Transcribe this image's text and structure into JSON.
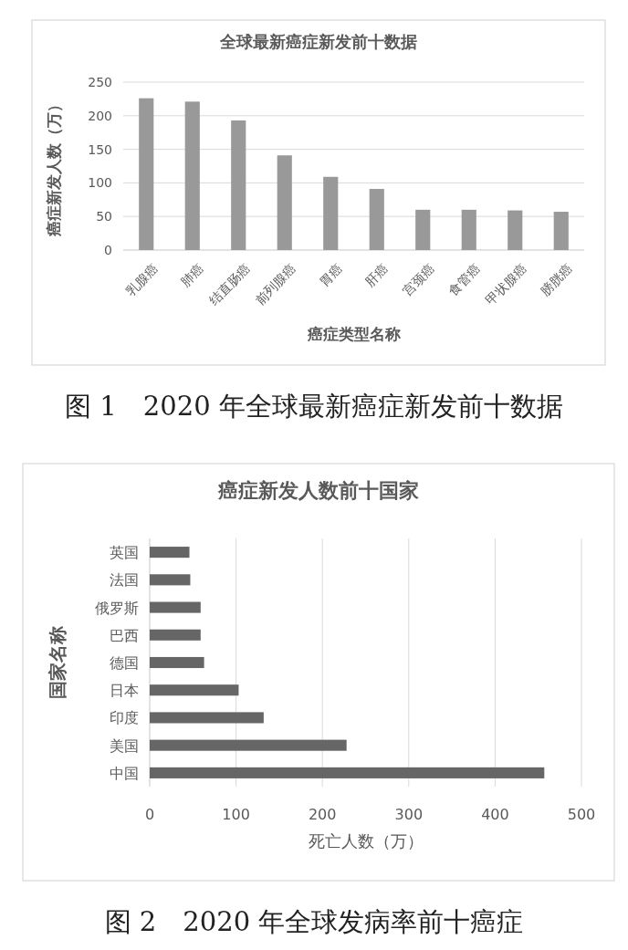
{
  "chart_data": [
    {
      "type": "bar",
      "title": "全球最新癌症新发前十数据",
      "xlabel": "癌症类型名称",
      "ylabel": "癌症新发人数（万）",
      "categories": [
        "乳腺癌",
        "肺癌",
        "结直肠癌",
        "前列腺癌",
        "胃癌",
        "肝癌",
        "宫颈癌",
        "食管癌",
        "甲状腺癌",
        "膀胱癌"
      ],
      "values": [
        226,
        221,
        193,
        141,
        109,
        91,
        60,
        60,
        59,
        57
      ],
      "color": "#999999",
      "ylim": [
        0,
        250
      ],
      "yticks": [
        0,
        50,
        100,
        150,
        200,
        250
      ],
      "grid": "y",
      "annotations": [
        "图 1　2020 年全球最新癌症新发前十数据"
      ]
    },
    {
      "type": "bar",
      "orientation": "horizontal",
      "title": "癌症新发人数前十国家",
      "xlabel": "死亡人数（万）",
      "ylabel": "国家名称",
      "categories": [
        "英国",
        "法国",
        "俄罗斯",
        "巴西",
        "德国",
        "日本",
        "印度",
        "美国",
        "中国"
      ],
      "values": [
        46,
        47,
        59,
        59,
        63,
        103,
        132,
        228,
        457
      ],
      "color": "#666666",
      "xlim": [
        0,
        500
      ],
      "xticks": [
        0,
        100,
        200,
        300,
        400,
        500
      ],
      "grid": "x",
      "annotations": [
        "图 2　2020 年全球发病率前十癌症"
      ]
    }
  ]
}
